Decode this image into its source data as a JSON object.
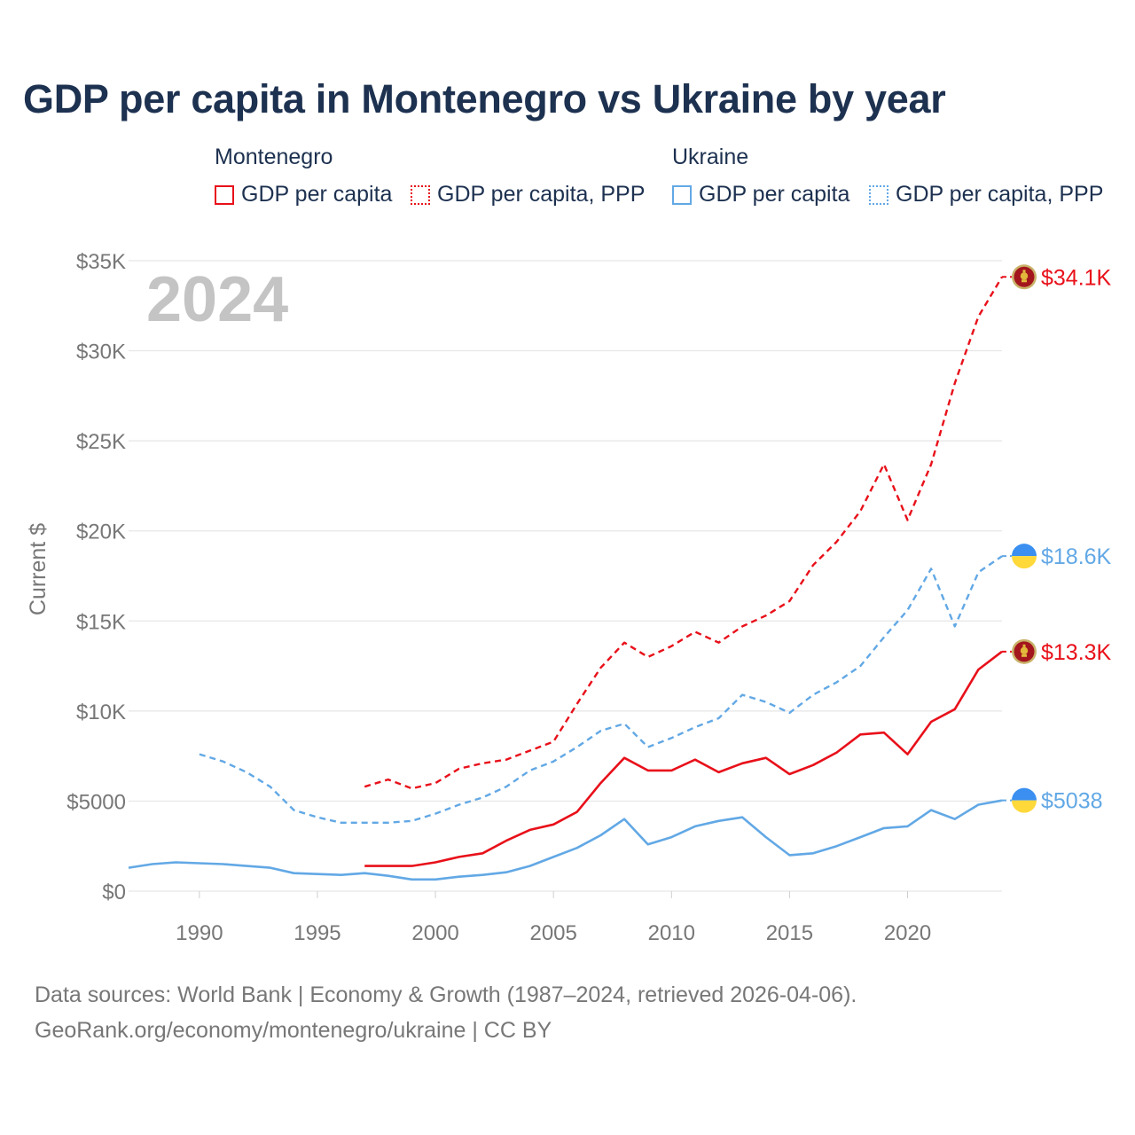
{
  "title": "GDP per capita in Montenegro vs Ukraine by year",
  "legend": {
    "groups": [
      {
        "country": "Montenegro",
        "items": [
          {
            "label": "GDP per capita",
            "style": "solid",
            "color": "#e8101a"
          },
          {
            "label": "GDP per capita, PPP",
            "style": "dotted",
            "color": "#e8101a"
          }
        ]
      },
      {
        "country": "Ukraine",
        "items": [
          {
            "label": "GDP per capita",
            "style": "solid",
            "color": "#62a8e5"
          },
          {
            "label": "GDP per capita, PPP",
            "style": "dotted",
            "color": "#62a8e5"
          }
        ]
      }
    ]
  },
  "footer": {
    "line1": "Data sources: World Bank | Economy & Growth (1987–2024, retrieved 2026-04-06).",
    "line2": "GeoRank.org/economy/montenegro/ukraine | CC BY"
  },
  "chart_data": {
    "type": "line",
    "year_label": "2024",
    "ylabel": "Current $",
    "xlim": [
      1987,
      2024
    ],
    "ylim": [
      0,
      35000
    ],
    "x_ticks": [
      1990,
      1995,
      2000,
      2005,
      2010,
      2015,
      2020
    ],
    "y_ticks": [
      {
        "value": 0,
        "label": "$0"
      },
      {
        "value": 5000,
        "label": "$5000"
      },
      {
        "value": 10000,
        "label": "$10K"
      },
      {
        "value": 15000,
        "label": "$15K"
      },
      {
        "value": 20000,
        "label": "$20K"
      },
      {
        "value": 25000,
        "label": "$25K"
      },
      {
        "value": 30000,
        "label": "$30K"
      },
      {
        "value": 35000,
        "label": "$35K"
      }
    ],
    "series": [
      {
        "name": "Montenegro GDP per capita, PPP",
        "country": "Montenegro",
        "color": "#e8101a",
        "dashed": true,
        "end_label": "$34.1K",
        "flag": "montenegro",
        "x": [
          1997,
          1998,
          1999,
          2000,
          2001,
          2002,
          2003,
          2004,
          2005,
          2006,
          2007,
          2008,
          2009,
          2010,
          2011,
          2012,
          2013,
          2014,
          2015,
          2016,
          2017,
          2018,
          2019,
          2020,
          2021,
          2022,
          2023,
          2024
        ],
        "values": [
          5800,
          6200,
          5700,
          6000,
          6800,
          7100,
          7300,
          7800,
          8300,
          10400,
          12400,
          13800,
          13000,
          13600,
          14400,
          13800,
          14700,
          15300,
          16100,
          18100,
          19400,
          21100,
          23700,
          20600,
          23700,
          28200,
          31900,
          34100
        ]
      },
      {
        "name": "Ukraine GDP per capita, PPP",
        "country": "Ukraine",
        "color": "#62a8e5",
        "dashed": true,
        "end_label": "$18.6K",
        "flag": "ukraine",
        "x": [
          1990,
          1991,
          1992,
          1993,
          1994,
          1995,
          1996,
          1997,
          1998,
          1999,
          2000,
          2001,
          2002,
          2003,
          2004,
          2005,
          2006,
          2007,
          2008,
          2009,
          2010,
          2011,
          2012,
          2013,
          2014,
          2015,
          2016,
          2017,
          2018,
          2019,
          2020,
          2021,
          2022,
          2023,
          2024
        ],
        "values": [
          7600,
          7200,
          6600,
          5800,
          4500,
          4100,
          3800,
          3800,
          3800,
          3900,
          4300,
          4800,
          5200,
          5800,
          6700,
          7200,
          8000,
          8900,
          9300,
          8000,
          8500,
          9100,
          9600,
          10900,
          10500,
          9900,
          10900,
          11600,
          12500,
          14100,
          15600,
          17900,
          14700,
          17700,
          18600
        ]
      },
      {
        "name": "Montenegro GDP per capita",
        "country": "Montenegro",
        "color": "#e8101a",
        "dashed": false,
        "end_label": "$13.3K",
        "flag": "montenegro",
        "x": [
          1997,
          1998,
          1999,
          2000,
          2001,
          2002,
          2003,
          2004,
          2005,
          2006,
          2007,
          2008,
          2009,
          2010,
          2011,
          2012,
          2013,
          2014,
          2015,
          2016,
          2017,
          2018,
          2019,
          2020,
          2021,
          2022,
          2023,
          2024
        ],
        "values": [
          1400,
          1400,
          1400,
          1600,
          1900,
          2100,
          2800,
          3400,
          3700,
          4400,
          6000,
          7400,
          6700,
          6700,
          7300,
          6600,
          7100,
          7400,
          6500,
          7000,
          7700,
          8700,
          8800,
          7600,
          9400,
          10100,
          12300,
          13300
        ]
      },
      {
        "name": "Ukraine GDP per capita",
        "country": "Ukraine",
        "color": "#62a8e5",
        "dashed": false,
        "end_label": "$5038",
        "flag": "ukraine",
        "x": [
          1987,
          1988,
          1989,
          1990,
          1991,
          1992,
          1993,
          1994,
          1995,
          1996,
          1997,
          1998,
          1999,
          2000,
          2001,
          2002,
          2003,
          2004,
          2005,
          2006,
          2007,
          2008,
          2009,
          2010,
          2011,
          2012,
          2013,
          2014,
          2015,
          2016,
          2017,
          2018,
          2019,
          2020,
          2021,
          2022,
          2023,
          2024
        ],
        "values": [
          1300,
          1500,
          1600,
          1550,
          1500,
          1400,
          1300,
          1000,
          950,
          900,
          1000,
          850,
          650,
          650,
          800,
          900,
          1050,
          1400,
          1900,
          2400,
          3100,
          4000,
          2600,
          3000,
          3600,
          3900,
          4100,
          3000,
          2000,
          2100,
          2500,
          3000,
          3500,
          3600,
          4500,
          4000,
          4800,
          5038
        ]
      }
    ]
  }
}
